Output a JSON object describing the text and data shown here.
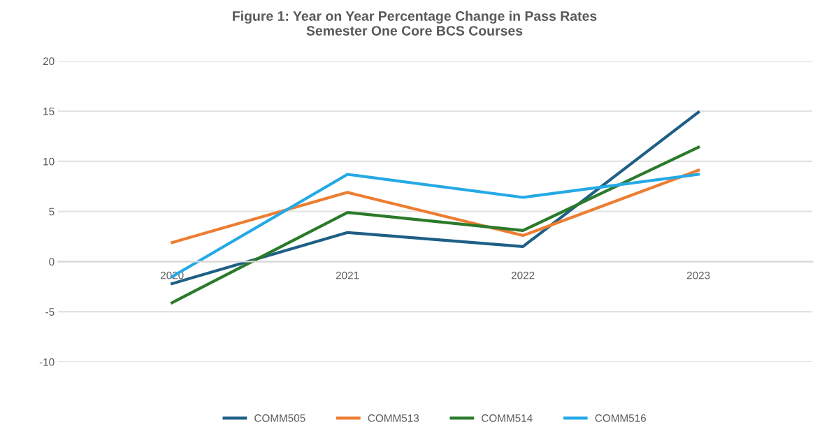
{
  "chart_data": {
    "type": "line",
    "title": "Figure 1: Year on Year Percentage Change in Pass Rates\nSemester One Core BCS Courses",
    "categories": [
      "2020",
      "2021",
      "2022",
      "2023"
    ],
    "series": [
      {
        "name": "COMM505",
        "color": "#1f5f85",
        "values": [
          -2.2,
          2.9,
          1.5,
          14.9
        ]
      },
      {
        "name": "COMM513",
        "color": "#ed7d31",
        "values": [
          1.9,
          6.9,
          2.6,
          9.1
        ]
      },
      {
        "name": "COMM514",
        "color": "#2a7a2a",
        "values": [
          -4.1,
          4.9,
          3.1,
          11.4
        ]
      },
      {
        "name": "COMM516",
        "color": "#25a9e6",
        "values": [
          -1.5,
          8.7,
          6.4,
          8.7
        ]
      }
    ],
    "ylim": [
      -10,
      20
    ],
    "yticks": [
      -10,
      -5,
      0,
      5,
      10,
      15,
      20
    ],
    "grid": "y",
    "legend": "bottom",
    "marker": "none",
    "line_style": "solid"
  }
}
